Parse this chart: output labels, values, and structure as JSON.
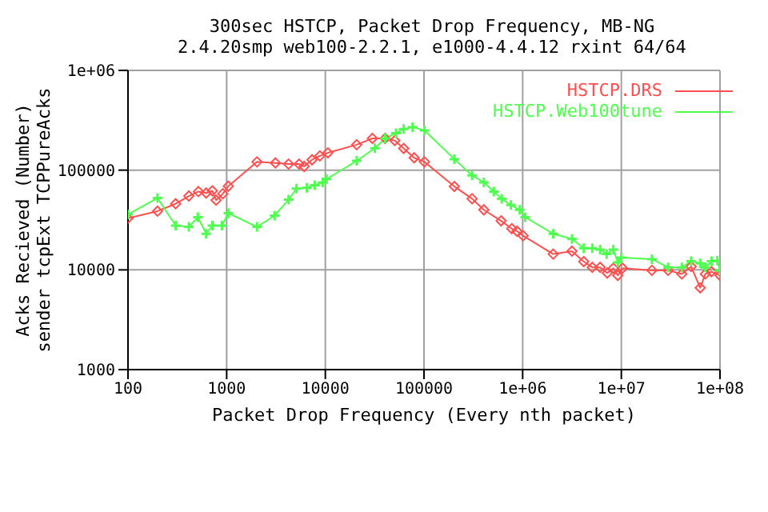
{
  "chart_data": {
    "type": "line",
    "title": "300sec HSTCP, Packet Drop Frequency, MB-NG",
    "subtitle": "2.4.20smp web100-2.2.1, e1000-4.4.12 rxint 64/64",
    "xlabel": "Packet Drop Frequency (Every nth packet)",
    "ylabel": "Acks Recieved (Number)\nsender tcpExt TCPPureAcks",
    "log": "xy",
    "grid": true,
    "legend": "top right",
    "line_style": "solid",
    "xlim": [
      100,
      100000000
    ],
    "xticks": [
      100,
      1000,
      10000,
      100000,
      {
        "value": 1000000,
        "label": "1e+06"
      },
      {
        "value": 10000000,
        "label": "1e+07"
      },
      {
        "value": 100000000,
        "label": "1e+08"
      }
    ],
    "ylim": [
      1000,
      1000000
    ],
    "yticks": [
      1000,
      10000,
      100000,
      {
        "value": 1000000,
        "label": "1e+06"
      }
    ],
    "series": [
      {
        "name": "HSTCP.DRS",
        "color": "#ff4f4f",
        "marker": "diamond",
        "x": [
          100,
          199,
          304,
          414,
          517,
          620,
          716,
          781,
          914,
          1040,
          2030,
          3120,
          4240,
          5420,
          6100,
          7330,
          8800,
          10600,
          20800,
          30000,
          40400,
          50600,
          62200,
          79500,
          101000,
          203000,
          307000,
          404000,
          605000,
          775000,
          877000,
          1010000,
          2040000,
          3160000,
          4160000,
          5080000,
          6100000,
          7200000,
          8300000,
          9200000,
          10300000,
          20400000,
          29800000,
          41000000,
          51000000,
          63000000,
          71000000,
          82000000,
          100000000
        ],
        "values": [
          33000,
          38800,
          46000,
          55000,
          61000,
          59000,
          62000,
          50000,
          58000,
          69000,
          121000,
          118000,
          115000,
          115000,
          109000,
          127000,
          139000,
          149000,
          180000,
          208000,
          208000,
          198000,
          165000,
          133000,
          121000,
          68600,
          51700,
          40000,
          31000,
          25900,
          24400,
          22000,
          14400,
          15400,
          12100,
          10600,
          10600,
          9300,
          10400,
          8800,
          10400,
          9900,
          9900,
          9100,
          10800,
          6600,
          9100,
          9600,
          8800
        ]
      },
      {
        "name": "HSTCP.Web100tune",
        "color": "#4fff4f",
        "marker": "cross",
        "x": [
          100,
          199,
          304,
          414,
          510,
          620,
          716,
          894,
          1040,
          2030,
          3060,
          4240,
          5100,
          6500,
          7800,
          9400,
          10300,
          20800,
          31800,
          40400,
          52000,
          62200,
          76600,
          101000,
          203000,
          307000,
          404000,
          510000,
          612000,
          760000,
          935000,
          1060000,
          2040000,
          3160000,
          4160000,
          5080000,
          6100000,
          7100000,
          8300000,
          9200000,
          10000000,
          20400000,
          29800000,
          41000000,
          51000000,
          63000000,
          71000000,
          82000000,
          94000000,
          100000000
        ],
        "values": [
          36000,
          52500,
          27800,
          27000,
          33700,
          23000,
          27800,
          27800,
          37000,
          27000,
          35000,
          50600,
          65300,
          66500,
          70600,
          75400,
          81500,
          124000,
          166000,
          208000,
          235000,
          258000,
          270000,
          250000,
          129000,
          88500,
          75400,
          61000,
          51700,
          44700,
          40000,
          33800,
          23000,
          20400,
          16500,
          16500,
          16000,
          14400,
          16000,
          11900,
          13300,
          12800,
          10600,
          10600,
          12200,
          11600,
          10600,
          12200,
          12400,
          9900
        ]
      }
    ]
  }
}
